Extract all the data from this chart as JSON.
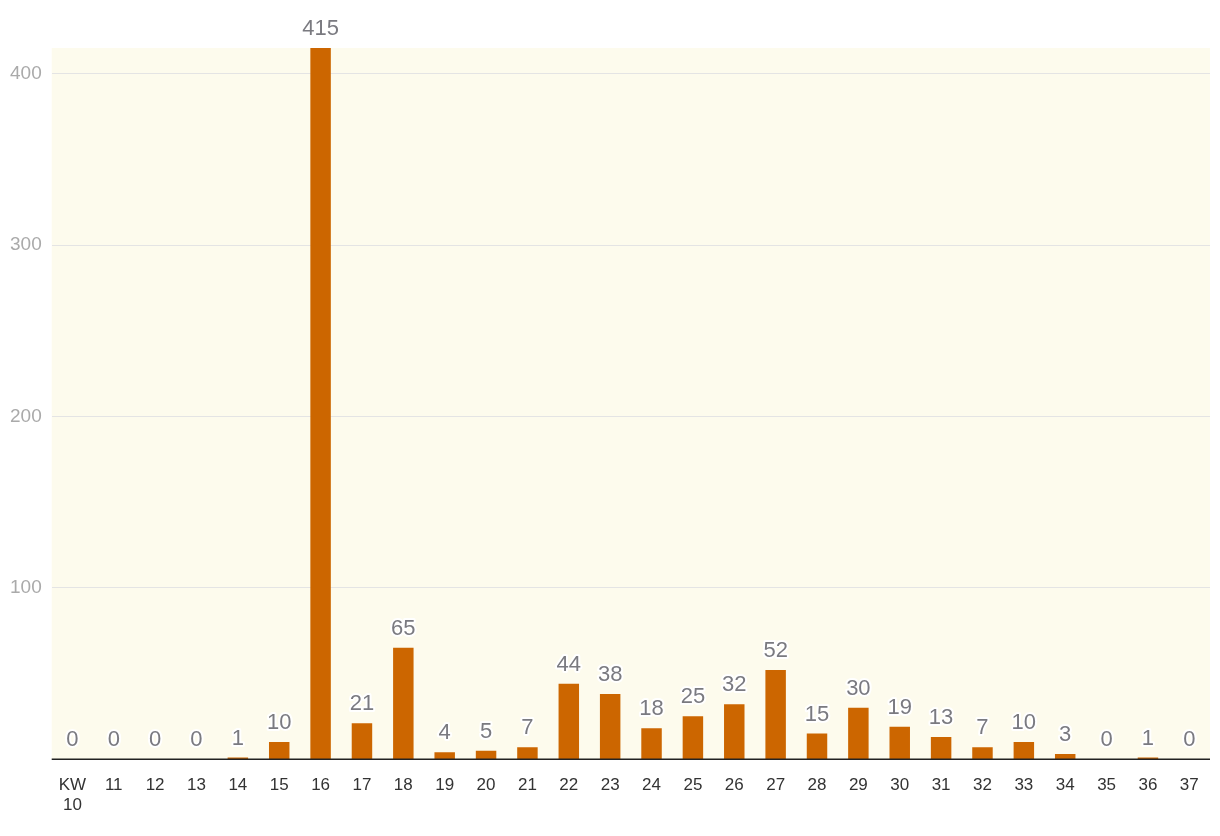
{
  "chart_data": {
    "type": "bar",
    "categories": [
      "KW 10",
      "11",
      "12",
      "13",
      "14",
      "15",
      "16",
      "17",
      "18",
      "19",
      "20",
      "21",
      "22",
      "23",
      "24",
      "25",
      "26",
      "27",
      "28",
      "29",
      "30",
      "31",
      "32",
      "33",
      "34",
      "35",
      "36",
      "37"
    ],
    "values": [
      0,
      0,
      0,
      0,
      1,
      10,
      415,
      21,
      65,
      4,
      5,
      7,
      44,
      38,
      18,
      25,
      32,
      52,
      15,
      30,
      19,
      13,
      7,
      10,
      3,
      0,
      1,
      0
    ],
    "color": "#cc6600",
    "ylim": [
      0,
      415
    ],
    "yticks": [
      100,
      200,
      300,
      400
    ],
    "grid": "y",
    "data_labels": true,
    "legend": false
  }
}
